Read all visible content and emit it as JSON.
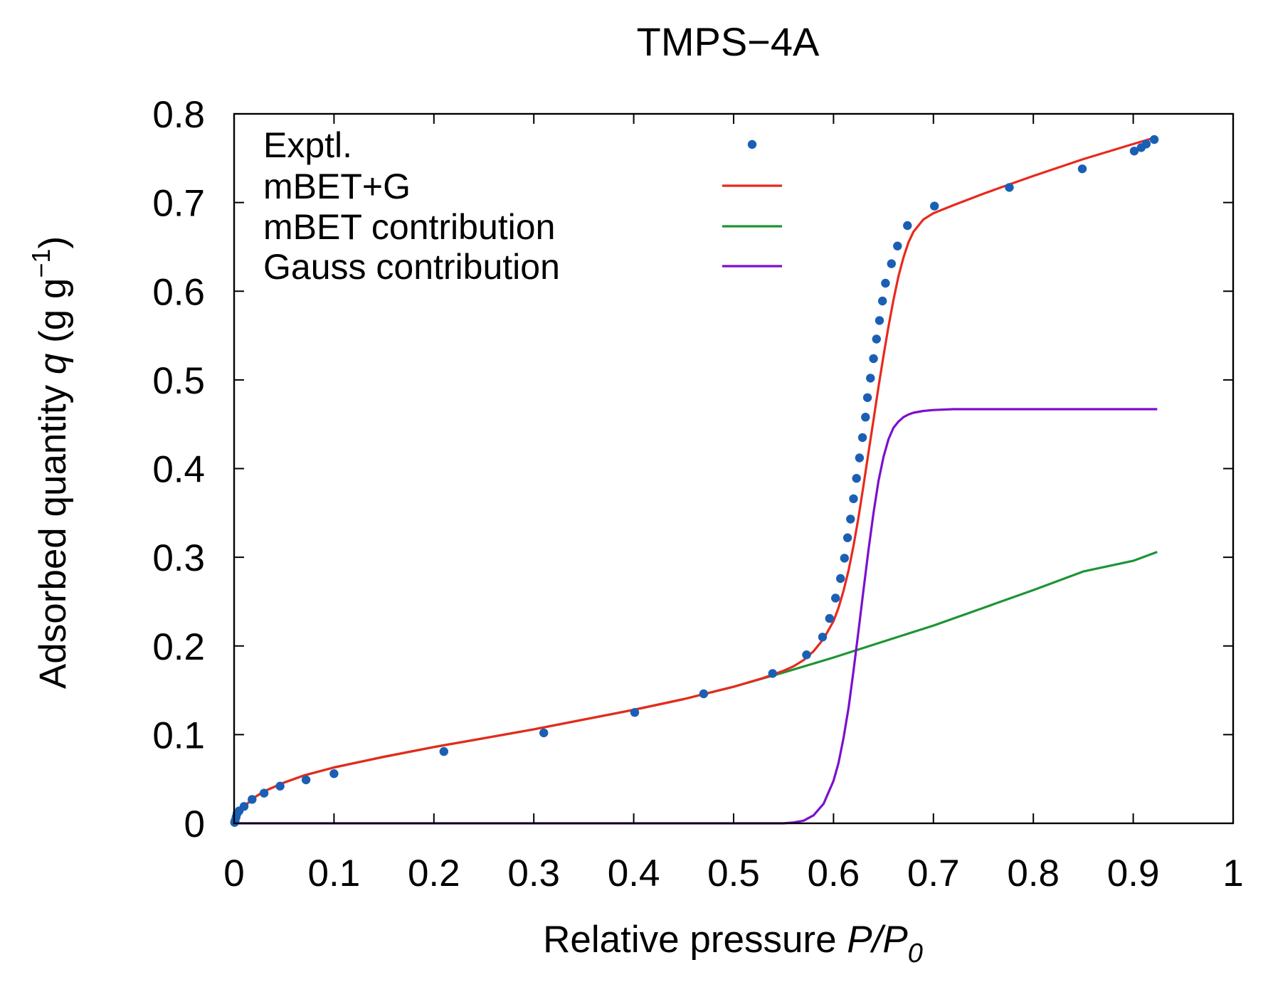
{
  "chart_data": {
    "type": "scatter",
    "title": "TMPS−4A",
    "xlabel": {
      "text": "Relative pressure ",
      "var": "P/P",
      "sub": "0"
    },
    "ylabel": {
      "text": "Adsorbed quantity ",
      "var": "q",
      "unit_open": " (g g",
      "unit_exp": "−1",
      "unit_close": ")"
    },
    "xlim": [
      0,
      1
    ],
    "ylim": [
      0,
      0.8
    ],
    "xticks": [
      {
        "value": 0,
        "label": "0"
      },
      {
        "value": 0.1,
        "label": "0.1"
      },
      {
        "value": 0.2,
        "label": "0.2"
      },
      {
        "value": 0.3,
        "label": "0.3"
      },
      {
        "value": 0.4,
        "label": "0.4"
      },
      {
        "value": 0.5,
        "label": "0.5"
      },
      {
        "value": 0.6,
        "label": "0.6"
      },
      {
        "value": 0.7,
        "label": "0.7"
      },
      {
        "value": 0.8,
        "label": "0.8"
      },
      {
        "value": 0.9,
        "label": "0.9"
      },
      {
        "value": 1,
        "label": "1"
      }
    ],
    "yticks": [
      {
        "value": 0,
        "label": "0"
      },
      {
        "value": 0.1,
        "label": "0.1"
      },
      {
        "value": 0.2,
        "label": "0.2"
      },
      {
        "value": 0.3,
        "label": "0.3"
      },
      {
        "value": 0.4,
        "label": "0.4"
      },
      {
        "value": 0.5,
        "label": "0.5"
      },
      {
        "value": 0.6,
        "label": "0.6"
      },
      {
        "value": 0.7,
        "label": "0.7"
      },
      {
        "value": 0.8,
        "label": "0.8"
      }
    ],
    "grid": false,
    "legend_position": "top-left",
    "series": [
      {
        "name": "Exptl.",
        "kind": "points",
        "color": "#1a5fb4",
        "x": [
          0.0005,
          0.001,
          0.002,
          0.003,
          0.005,
          0.01,
          0.018,
          0.03,
          0.046,
          0.072,
          0.1,
          0.21,
          0.31,
          0.401,
          0.47,
          0.539,
          0.573,
          0.589,
          0.596,
          0.602,
          0.607,
          0.611,
          0.614,
          0.617,
          0.62,
          0.623,
          0.626,
          0.629,
          0.632,
          0.634,
          0.637,
          0.64,
          0.643,
          0.646,
          0.649,
          0.652,
          0.658,
          0.664,
          0.674,
          0.701,
          0.776,
          0.849,
          0.901,
          0.908,
          0.913,
          0.921
        ],
        "y": [
          0.001,
          0.003,
          0.007,
          0.011,
          0.014,
          0.019,
          0.027,
          0.034,
          0.042,
          0.049,
          0.056,
          0.081,
          0.102,
          0.125,
          0.146,
          0.169,
          0.19,
          0.21,
          0.231,
          0.254,
          0.276,
          0.299,
          0.322,
          0.343,
          0.366,
          0.389,
          0.412,
          0.435,
          0.458,
          0.48,
          0.502,
          0.524,
          0.546,
          0.567,
          0.589,
          0.609,
          0.631,
          0.651,
          0.674,
          0.696,
          0.717,
          0.738,
          0.758,
          0.762,
          0.766,
          0.771
        ]
      },
      {
        "name": "mBET+G",
        "kind": "line",
        "color": "#e8291c",
        "x": [
          0,
          0.005,
          0.01,
          0.02,
          0.03,
          0.05,
          0.07,
          0.1,
          0.15,
          0.2,
          0.25,
          0.3,
          0.35,
          0.4,
          0.45,
          0.5,
          0.53,
          0.55,
          0.56,
          0.57,
          0.58,
          0.59,
          0.6,
          0.605,
          0.61,
          0.615,
          0.62,
          0.625,
          0.63,
          0.635,
          0.64,
          0.645,
          0.65,
          0.655,
          0.66,
          0.665,
          0.67,
          0.675,
          0.68,
          0.69,
          0.7,
          0.72,
          0.75,
          0.8,
          0.85,
          0.9,
          0.924
        ],
        "y": [
          0,
          0.012,
          0.019,
          0.029,
          0.036,
          0.046,
          0.054,
          0.063,
          0.075,
          0.086,
          0.096,
          0.106,
          0.117,
          0.128,
          0.14,
          0.154,
          0.164,
          0.172,
          0.177,
          0.184,
          0.194,
          0.208,
          0.228,
          0.243,
          0.262,
          0.285,
          0.313,
          0.345,
          0.381,
          0.418,
          0.455,
          0.492,
          0.527,
          0.56,
          0.59,
          0.617,
          0.638,
          0.655,
          0.667,
          0.681,
          0.688,
          0.697,
          0.71,
          0.73,
          0.749,
          0.766,
          0.774
        ]
      },
      {
        "name": "mBET contribution",
        "kind": "line",
        "color": "#1e9435",
        "x": [
          0,
          0.005,
          0.01,
          0.02,
          0.03,
          0.05,
          0.07,
          0.1,
          0.15,
          0.2,
          0.25,
          0.3,
          0.35,
          0.4,
          0.45,
          0.5,
          0.55,
          0.6,
          0.65,
          0.7,
          0.75,
          0.8,
          0.85,
          0.9,
          0.924
        ],
        "y": [
          0,
          0.012,
          0.019,
          0.029,
          0.036,
          0.046,
          0.054,
          0.063,
          0.075,
          0.086,
          0.096,
          0.106,
          0.117,
          0.128,
          0.14,
          0.154,
          0.17,
          0.187,
          0.205,
          0.223,
          0.243,
          0.263,
          0.284,
          0.296,
          0.306
        ]
      },
      {
        "name": "Gauss contribution",
        "kind": "line",
        "color": "#7b0fce",
        "x": [
          0,
          0.5,
          0.55,
          0.56,
          0.57,
          0.58,
          0.59,
          0.6,
          0.605,
          0.61,
          0.615,
          0.62,
          0.625,
          0.63,
          0.635,
          0.64,
          0.645,
          0.65,
          0.655,
          0.66,
          0.665,
          0.67,
          0.675,
          0.68,
          0.69,
          0.7,
          0.72,
          0.75,
          0.8,
          0.9,
          0.924
        ],
        "y": [
          0,
          0,
          0,
          0.001,
          0.003,
          0.009,
          0.022,
          0.048,
          0.068,
          0.096,
          0.13,
          0.172,
          0.217,
          0.263,
          0.308,
          0.35,
          0.386,
          0.413,
          0.433,
          0.446,
          0.453,
          0.458,
          0.461,
          0.463,
          0.465,
          0.466,
          0.467,
          0.467,
          0.467,
          0.467,
          0.467
        ]
      }
    ]
  }
}
